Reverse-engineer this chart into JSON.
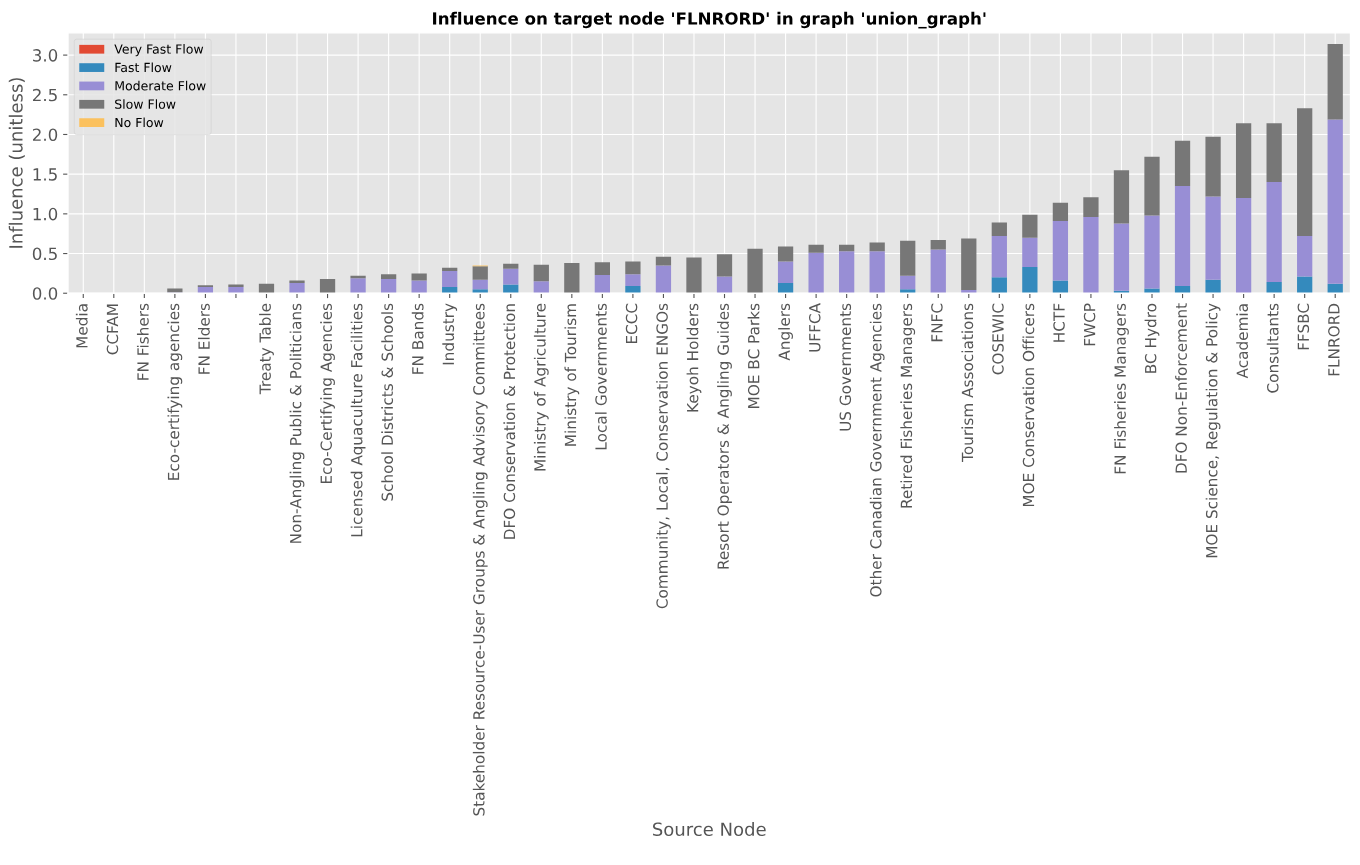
{
  "chart_data": {
    "type": "bar",
    "stacked": true,
    "title": "Influence on target node 'FLNRORD' in graph 'union_graph'",
    "xlabel": "Source Node",
    "ylabel": "Influence (unitless)",
    "categories": [
      "Media",
      "CCFAM",
      "FN Fishers",
      "Eco-certifying agencies",
      "FN Elders",
      null,
      "Treaty Table",
      "Non-Angling Public & Politicians",
      "Eco-Certifying Agencies",
      "Licensed Aquaculture Facilities",
      "School Districts & Schools",
      "FN Bands",
      "Industry",
      "Stakeholder Resource-User Groups & Angling Advisory Committees",
      "DFO Conservation & Protection",
      "Ministry of Agriculture",
      "Ministry of Tourism",
      "Local Governments",
      "ECCC",
      "Community, Local, Conservation ENGOs",
      "Keyoh Holders",
      "Resort Operators & Angling Guides",
      "MOE BC Parks",
      "Anglers",
      "UFFCA",
      "US Governments",
      "Other Canadian Government Agencies",
      "Retired Fisheries Managers",
      "FNFC",
      "Tourism Associations",
      "COSEWIC",
      "MOE Conservation Officers",
      "HCTF",
      "FWCP",
      "FN Fisheries Managers",
      "BC Hydro",
      "DFO Non-Enforcement",
      "MOE Science, Regulation & Policy",
      "Academia",
      "Consultants",
      "FFSBC",
      "FLNRORD"
    ],
    "series": [
      {
        "name": "Very Fast Flow",
        "color": "#e24a33",
        "values": [
          0,
          0,
          0,
          0,
          0,
          0,
          0,
          0,
          0,
          0,
          0,
          0,
          0,
          0,
          0,
          0,
          0,
          0,
          0,
          0,
          0,
          0,
          0,
          0,
          0,
          0,
          0,
          0,
          0,
          0,
          0,
          0,
          0,
          0,
          0,
          0,
          0,
          0,
          0,
          0,
          0,
          0
        ]
      },
      {
        "name": "Fast Flow",
        "color": "#348abd",
        "values": [
          0,
          0,
          0,
          0,
          0,
          0,
          0,
          null,
          0,
          0,
          0,
          0,
          0.08,
          0.05,
          0.11,
          0,
          0,
          0,
          0.09,
          0,
          0,
          0,
          0,
          0.13,
          0,
          0,
          0,
          0.05,
          0,
          0,
          0.2,
          0.33,
          0.16,
          0,
          0.03,
          0.06,
          0.09,
          0.17,
          0,
          0.14,
          0.21,
          0.12
        ]
      },
      {
        "name": "Moderate Flow",
        "color": "#988ed5",
        "values": [
          0,
          0,
          0,
          0.01,
          0.08,
          0.08,
          0,
          0.13,
          null,
          0.19,
          0.18,
          0.16,
          0.2,
          0.12,
          0.2,
          0.15,
          0,
          0.23,
          0.15,
          0.35,
          0,
          0.21,
          0,
          0.27,
          0.51,
          0.53,
          0.53,
          0.17,
          0.55,
          0.04,
          0.52,
          0.37,
          0.75,
          0.96,
          0.85,
          0.92,
          1.26,
          1.05,
          1.2,
          1.26,
          0.51,
          2.07
        ]
      },
      {
        "name": "Slow Flow",
        "color": "#777777",
        "values": [
          0,
          0,
          null,
          0.05,
          0.02,
          0.03,
          0.12,
          0.03,
          0.18,
          0.03,
          0.06,
          0.09,
          0.04,
          0.17,
          0.06,
          0.21,
          0.38,
          0.16,
          0.16,
          0.11,
          0.45,
          0.28,
          0.56,
          0.19,
          0.1,
          0.08,
          0.11,
          0.44,
          0.12,
          0.65,
          0.17,
          0.29,
          0.23,
          0.25,
          0.67,
          0.74,
          0.57,
          0.75,
          0.94,
          0.74,
          1.61,
          0.95
        ]
      },
      {
        "name": "No Flow",
        "color": "#fbc15e",
        "values": [
          0,
          0,
          0,
          0,
          0,
          0,
          0,
          0,
          0,
          0,
          0,
          0,
          0,
          0.01,
          0,
          0,
          0,
          0,
          0,
          0,
          0,
          0,
          0,
          0,
          0,
          0,
          0,
          0,
          0,
          0,
          0,
          0,
          0,
          0,
          0,
          0,
          0,
          0,
          0,
          0,
          0,
          0
        ]
      }
    ],
    "ylim": [
      0,
      3.28
    ],
    "yticks": [
      {
        "value": 0,
        "label": "0.0"
      },
      {
        "value": 0.5,
        "label": "0.5"
      },
      {
        "value": 1,
        "label": "1.0"
      },
      {
        "value": 1.5,
        "label": "1.5"
      },
      {
        "value": 2,
        "label": "2.0"
      },
      {
        "value": 2.5,
        "label": "2.5"
      },
      {
        "value": 3,
        "label": "3.0"
      }
    ],
    "grid": true,
    "legend": "top left"
  }
}
